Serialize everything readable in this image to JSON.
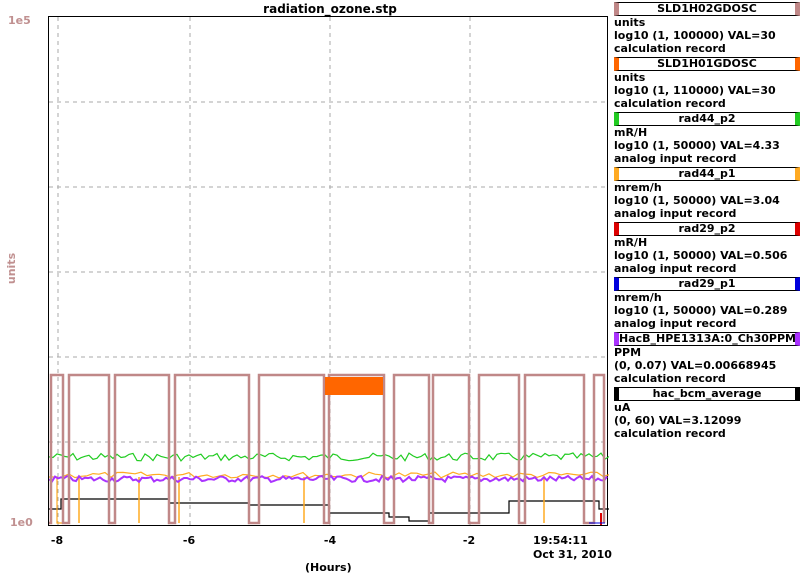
{
  "window": {
    "title": "radiation_ozone.stp"
  },
  "y_axis": {
    "label": "units",
    "top_tick": "1e5",
    "bottom_tick": "1e0"
  },
  "x_axis": {
    "label": "(Hours)",
    "ticks": [
      "-8",
      "-6",
      "-4",
      "-2"
    ],
    "end_time": "19:54:11",
    "end_date": "Oct 31, 2010"
  },
  "legend": [
    {
      "name": "SLD1H02GDOSC",
      "color": "#c08888",
      "unit": "units",
      "scale": "log10 (1, 100000) VAL=30",
      "type": "calculation record"
    },
    {
      "name": "SLD1H01GDOSC",
      "color": "#ff6600",
      "unit": "units",
      "scale": "log10 (1, 110000) VAL=30",
      "type": "calculation record"
    },
    {
      "name": "rad44_p2",
      "color": "#22cc22",
      "unit": "mR/H",
      "scale": "log10 (1, 50000) VAL=4.33",
      "type": "analog input record"
    },
    {
      "name": "rad44_p1",
      "color": "#ffaa22",
      "unit": "mrem/h",
      "scale": "log10 (1, 50000) VAL=3.04",
      "type": "analog input record"
    },
    {
      "name": "rad29_p2",
      "color": "#dd0000",
      "unit": "mR/H",
      "scale": "log10 (1, 50000) VAL=0.506",
      "type": "analog input record"
    },
    {
      "name": "rad29_p1",
      "color": "#0000dd",
      "unit": "mrem/h",
      "scale": "log10 (1, 50000) VAL=0.289",
      "type": "analog input record"
    },
    {
      "name": "HacB_HPE1313A:0_Ch30PPM",
      "color": "#aa33ff",
      "unit": "PPM",
      "scale": "(0, 0.07) VAL=0.00668945",
      "type": "calculation record"
    },
    {
      "name": "hac_bcm_average",
      "color": "#000000",
      "unit": "uA",
      "scale": "(0, 60) VAL=3.12099",
      "type": "calculation record"
    }
  ]
}
